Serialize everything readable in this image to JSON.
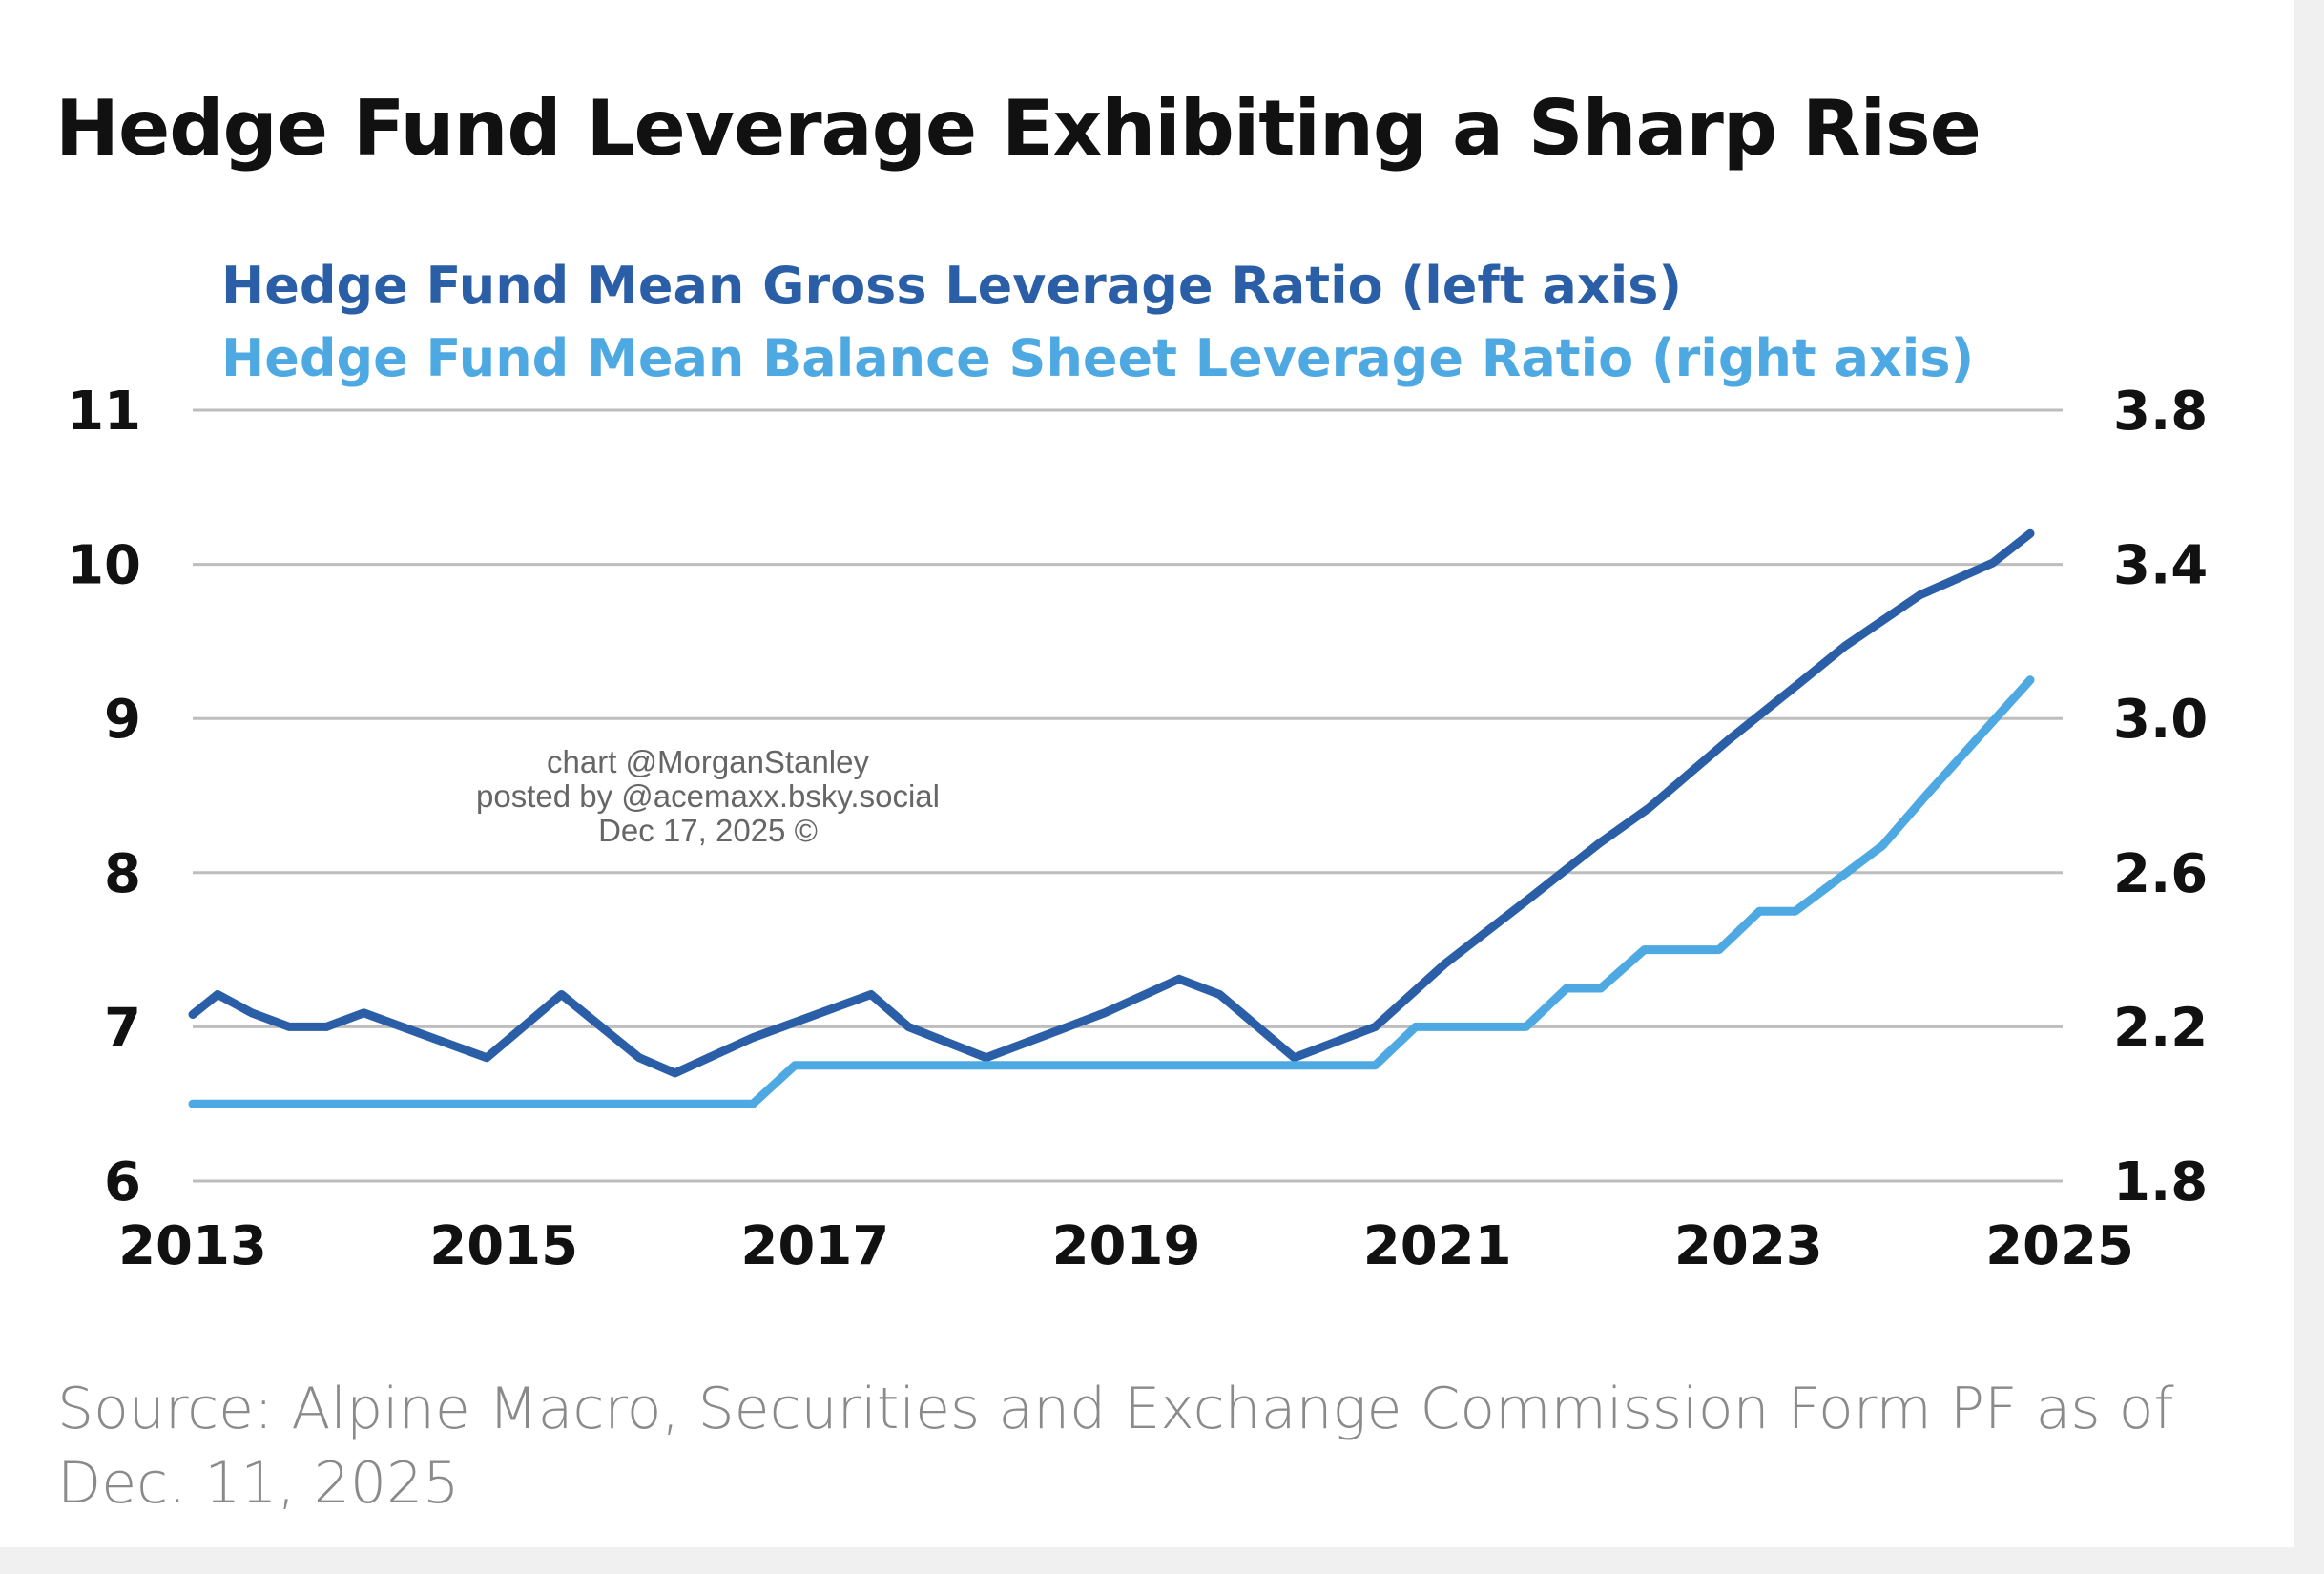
{
  "chart_data": {
    "type": "line",
    "title": "Hedge Fund Leverage Exhibiting a Sharp Rise",
    "source": "Source: Alpine Macro, Securities and Exchange Commission Form PF as of Dec. 11, 2025",
    "watermark": [
      "chart @MorganStanley",
      "posted by @acemaxx.bsky.social",
      "Dec 17, 2025 ©"
    ],
    "x_ticks": [
      "2013",
      "2015",
      "2017",
      "2019",
      "2021",
      "2023",
      "2025"
    ],
    "xlim": [
      2013,
      2025
    ],
    "y_left": {
      "ticks": [
        "11",
        "10",
        "9",
        "8",
        "7",
        "6"
      ],
      "lim": [
        6,
        11
      ]
    },
    "y_right": {
      "ticks": [
        "3.8",
        "3.4",
        "3.0",
        "2.6",
        "2.2",
        "1.8"
      ],
      "lim": [
        1.8,
        3.8
      ]
    },
    "grid": true,
    "legend_placement": "top-left",
    "series": [
      {
        "name": "Hedge Fund Mean Gross Leverage Ratio (left axis)",
        "axis": "left",
        "color": "#2a5ea6",
        "points": [
          [
            2013.0,
            7.08
          ],
          [
            2013.16,
            7.21
          ],
          [
            2013.38,
            7.09
          ],
          [
            2013.62,
            7.0
          ],
          [
            2013.86,
            7.0
          ],
          [
            2014.1,
            7.09
          ],
          [
            2014.89,
            6.8
          ],
          [
            2015.37,
            7.21
          ],
          [
            2015.87,
            6.8
          ],
          [
            2016.1,
            6.7
          ],
          [
            2016.6,
            6.93
          ],
          [
            2017.36,
            7.21
          ],
          [
            2017.6,
            7.0
          ],
          [
            2018.1,
            6.8
          ],
          [
            2018.86,
            7.09
          ],
          [
            2019.34,
            7.31
          ],
          [
            2019.6,
            7.21
          ],
          [
            2020.08,
            6.8
          ],
          [
            2020.6,
            7.0
          ],
          [
            2021.05,
            7.41
          ],
          [
            2021.6,
            7.84
          ],
          [
            2022.04,
            8.19
          ],
          [
            2022.36,
            8.42
          ],
          [
            2022.87,
            8.86
          ],
          [
            2023.34,
            9.24
          ],
          [
            2023.62,
            9.47
          ],
          [
            2024.1,
            9.8
          ],
          [
            2024.57,
            10.01
          ],
          [
            2024.81,
            10.2
          ]
        ]
      },
      {
        "name": "Hedge Fund Mean Balance Sheet Leverage Ratio (right axis)",
        "axis": "right",
        "color": "#4ea9e3",
        "points": [
          [
            2013.0,
            2.0
          ],
          [
            2016.6,
            2.0
          ],
          [
            2016.87,
            2.1
          ],
          [
            2020.6,
            2.1
          ],
          [
            2020.86,
            2.2
          ],
          [
            2021.57,
            2.2
          ],
          [
            2021.83,
            2.3
          ],
          [
            2022.05,
            2.3
          ],
          [
            2022.33,
            2.4
          ],
          [
            2022.81,
            2.4
          ],
          [
            2023.07,
            2.5
          ],
          [
            2023.3,
            2.5
          ],
          [
            2023.86,
            2.67
          ],
          [
            2024.14,
            2.8
          ],
          [
            2024.81,
            3.1
          ]
        ]
      }
    ]
  }
}
